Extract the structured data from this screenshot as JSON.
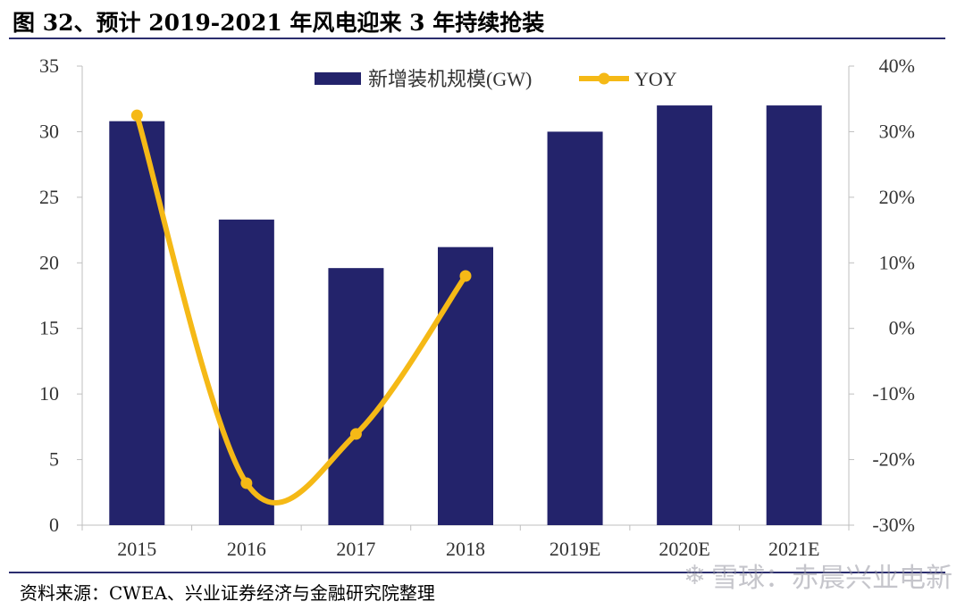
{
  "figure": {
    "title": "图 32、预计 2019-2021 年风电迎来 3 年持续抢装",
    "source": "资料来源：CWEA、兴业证券经济与金融研究院整理",
    "watermark": "雪球：赤晨兴业电新",
    "watermark_icon": "snowball-logo-icon"
  },
  "colors": {
    "bar": "#23236b",
    "line": "#f5b916",
    "rule": "#2b2d6e",
    "axis": "#bfbfbf"
  },
  "chart_data": {
    "type": "bar",
    "categories": [
      "2015",
      "2016",
      "2017",
      "2018",
      "2019E",
      "2020E",
      "2021E"
    ],
    "series": [
      {
        "name": "新增装机规模(GW)",
        "type": "bar",
        "axis": "left",
        "values": [
          30.8,
          23.3,
          19.6,
          21.2,
          30.0,
          32.0,
          32.0
        ]
      },
      {
        "name": "YOY",
        "type": "line",
        "axis": "right",
        "smooth": true,
        "marker": "circle",
        "values": [
          32.5,
          -23.6,
          -16.1,
          8.0,
          null,
          null,
          null
        ]
      }
    ],
    "y_left": {
      "min": 0,
      "max": 35,
      "ticks": [
        "0",
        "5",
        "10",
        "15",
        "20",
        "25",
        "30",
        "35"
      ]
    },
    "y_right": {
      "min": -30,
      "max": 40,
      "ticks": [
        "-30%",
        "-20%",
        "-10%",
        "0%",
        "10%",
        "20%",
        "30%",
        "40%"
      ]
    },
    "legend": {
      "position": "top-center"
    },
    "grid": false
  }
}
